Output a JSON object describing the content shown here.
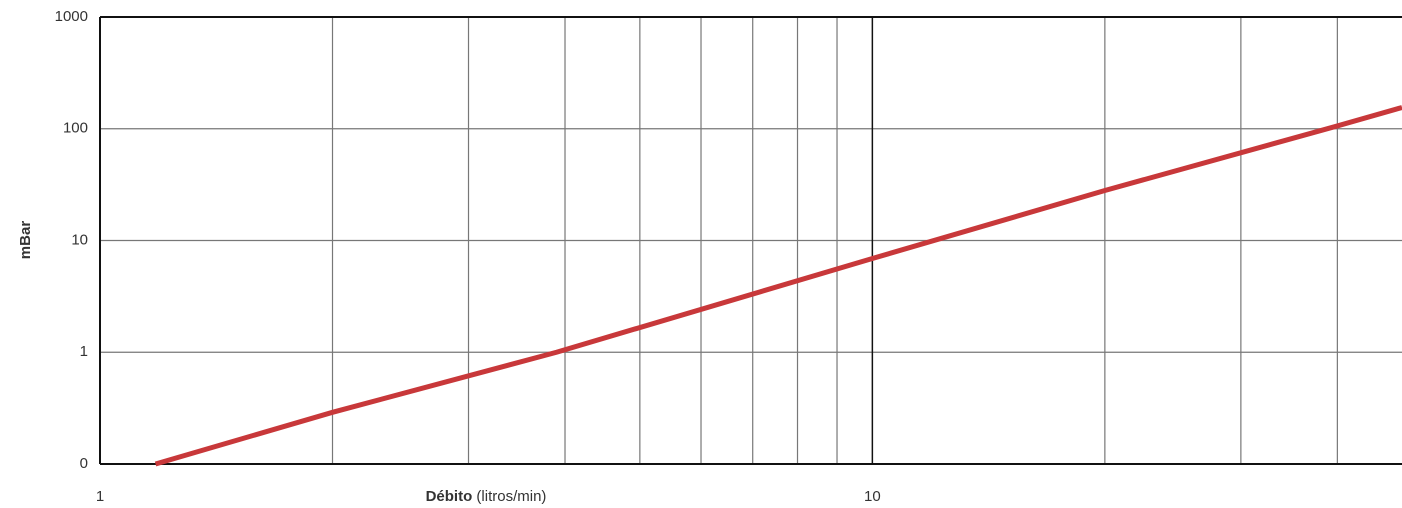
{
  "chart_data": {
    "type": "line",
    "xlabel": "Débito",
    "xlabel_unit": "(litros/min)",
    "ylabel": "mBar",
    "x": [
      1.18,
      2,
      3.9,
      10,
      20,
      40,
      48.5
    ],
    "series": [
      {
        "name": "mBar",
        "color": "#c8383a",
        "values": [
          0.1,
          0.29,
          1,
          6.9,
          28,
          106,
          155
        ]
      }
    ],
    "xscale": "log",
    "yscale": "log",
    "xlim": [
      1,
      48.5
    ],
    "ylim": [
      0.1,
      1000
    ],
    "xticks": [
      1,
      10
    ],
    "x_minor_ticks": [
      2,
      3,
      4,
      5,
      6,
      7,
      8,
      9,
      20,
      30,
      40
    ],
    "yticks": [
      {
        "value": 0.1,
        "label": "0"
      },
      1,
      10,
      100,
      1000
    ],
    "grid": true
  }
}
